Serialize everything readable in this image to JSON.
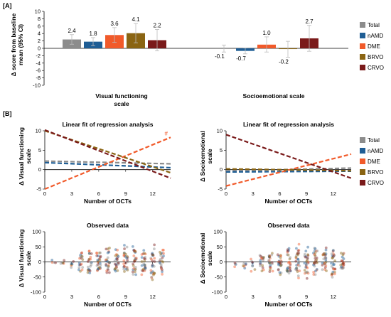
{
  "panel_a_label": "[A]",
  "panel_b_label": "[B]",
  "legend": [
    {
      "name": "Total",
      "color": "#8c8c8c"
    },
    {
      "name": "nAMD",
      "color": "#1f5e95"
    },
    {
      "name": "DME",
      "color": "#f15a2a"
    },
    {
      "name": "BRVO",
      "color": "#8a6412"
    },
    {
      "name": "CRVO",
      "color": "#7a1a1a"
    }
  ],
  "chart_data": [
    {
      "type": "bar",
      "panel": "A",
      "ylabel": "Δ score from baseline mean (95% CI)",
      "ylim": [
        -10,
        10
      ],
      "yticks": [
        -10,
        -8,
        -6,
        -4,
        -2,
        0,
        2,
        4,
        6,
        8,
        10
      ],
      "categories": [
        "Visual functioning scale",
        "Socioemotional scale"
      ],
      "series": [
        {
          "name": "Total",
          "values": [
            2.4,
            -0.1
          ],
          "ci_upper": [
            3.7,
            0.9
          ],
          "ci_lower": [
            1.1,
            -1.0
          ]
        },
        {
          "name": "nAMD",
          "values": [
            1.8,
            -0.7
          ],
          "ci_upper": [
            2.9,
            0.1
          ],
          "ci_lower": [
            0.7,
            -1.5
          ]
        },
        {
          "name": "DME",
          "values": [
            3.6,
            1.0
          ],
          "ci_upper": [
            5.6,
            3.1
          ],
          "ci_lower": [
            1.6,
            -1.0
          ]
        },
        {
          "name": "BRVO",
          "values": [
            4.1,
            -0.2
          ],
          "ci_upper": [
            6.7,
            1.9
          ],
          "ci_lower": [
            1.5,
            -2.4
          ]
        },
        {
          "name": "CRVO",
          "values": [
            2.2,
            2.7
          ],
          "ci_upper": [
            5.1,
            6.2
          ],
          "ci_lower": [
            -0.7,
            -0.8
          ]
        }
      ],
      "data_labels": [
        "2.4",
        "1.8",
        "3.6",
        "4.1",
        "2.2",
        "-0.1",
        "-0.7",
        "1.0",
        "-0.2",
        "2.7"
      ]
    },
    {
      "type": "line",
      "panel": "B",
      "title": "Linear fit of regression analysis",
      "xlabel": "Number of OCTs",
      "ylabel": "Δ Visual functioning scale",
      "xlim": [
        0,
        14
      ],
      "ylim": [
        -5,
        10
      ],
      "xticks": [
        0,
        3,
        6,
        9,
        12
      ],
      "yticks": [
        -5,
        0,
        5,
        10
      ],
      "annotation": "#",
      "series": [
        {
          "name": "Total",
          "x": [
            0,
            14
          ],
          "y": [
            2.2,
            1.5
          ]
        },
        {
          "name": "nAMD",
          "x": [
            0,
            14
          ],
          "y": [
            1.8,
            0.5
          ]
        },
        {
          "name": "DME",
          "x": [
            0,
            14
          ],
          "y": [
            -5.0,
            8.3
          ]
        },
        {
          "name": "BRVO",
          "x": [
            0,
            14
          ],
          "y": [
            10.0,
            -0.8
          ]
        },
        {
          "name": "CRVO",
          "x": [
            0,
            14
          ],
          "y": [
            10.2,
            -2.2
          ]
        }
      ]
    },
    {
      "type": "line",
      "panel": "B",
      "title": "Linear fit of regression analysis",
      "xlabel": "Number of OCTs",
      "ylabel": "Δ Socioemotional scale",
      "xlim": [
        0,
        14
      ],
      "ylim": [
        -5,
        10
      ],
      "xticks": [
        0,
        3,
        6,
        9,
        12
      ],
      "yticks": [
        -5,
        0,
        5,
        10
      ],
      "series": [
        {
          "name": "Total",
          "x": [
            0,
            14
          ],
          "y": [
            -0.3,
            0.4
          ]
        },
        {
          "name": "nAMD",
          "x": [
            0,
            14
          ],
          "y": [
            -0.6,
            -0.4
          ]
        },
        {
          "name": "DME",
          "x": [
            0,
            14
          ],
          "y": [
            -4.2,
            4.0
          ]
        },
        {
          "name": "BRVO",
          "x": [
            0,
            14
          ],
          "y": [
            0.2,
            -0.3
          ]
        },
        {
          "name": "CRVO",
          "x": [
            0,
            14
          ],
          "y": [
            9.0,
            -2.2
          ]
        }
      ]
    },
    {
      "type": "scatter",
      "panel": "B",
      "title": "Observed data",
      "xlabel": "Number of OCTs",
      "ylabel": "Δ Visual functioning scale",
      "xlim": [
        0,
        14
      ],
      "ylim": [
        -100,
        100
      ],
      "xticks": [
        0,
        3,
        6,
        9,
        12
      ],
      "yticks": [
        -100,
        -50,
        0,
        50,
        100
      ],
      "columns": [
        {
          "x": 1,
          "lo": -8,
          "hi": 8,
          "n": 4
        },
        {
          "x": 2,
          "lo": -15,
          "hi": 12,
          "n": 5
        },
        {
          "x": 3,
          "lo": -20,
          "hi": 15,
          "n": 6
        },
        {
          "x": 4,
          "lo": -35,
          "hi": 40,
          "n": 18
        },
        {
          "x": 5,
          "lo": -40,
          "hi": 45,
          "n": 22
        },
        {
          "x": 6,
          "lo": -45,
          "hi": 50,
          "n": 26
        },
        {
          "x": 7,
          "lo": -50,
          "hi": 55,
          "n": 26
        },
        {
          "x": 8,
          "lo": -45,
          "hi": 55,
          "n": 26
        },
        {
          "x": 9,
          "lo": -55,
          "hi": 60,
          "n": 28
        },
        {
          "x": 10,
          "lo": -55,
          "hi": 60,
          "n": 28
        },
        {
          "x": 11,
          "lo": -50,
          "hi": 55,
          "n": 26
        },
        {
          "x": 12,
          "lo": -75,
          "hi": 65,
          "n": 28
        },
        {
          "x": 13,
          "lo": -45,
          "hi": 55,
          "n": 22
        }
      ]
    },
    {
      "type": "scatter",
      "panel": "B",
      "title": "Observed data",
      "xlabel": "Number of OCTs",
      "ylabel": "Δ Socioemotional scale",
      "xlim": [
        0,
        14
      ],
      "ylim": [
        -100,
        100
      ],
      "xticks": [
        0,
        3,
        6,
        9,
        12
      ],
      "yticks": [
        -100,
        -50,
        0,
        50,
        100
      ],
      "columns": [
        {
          "x": 1,
          "lo": -20,
          "hi": 10,
          "n": 4
        },
        {
          "x": 2,
          "lo": -30,
          "hi": 15,
          "n": 6
        },
        {
          "x": 3,
          "lo": -35,
          "hi": 20,
          "n": 8
        },
        {
          "x": 4,
          "lo": -40,
          "hi": 30,
          "n": 18
        },
        {
          "x": 5,
          "lo": -45,
          "hi": 35,
          "n": 22
        },
        {
          "x": 6,
          "lo": -50,
          "hi": 45,
          "n": 26
        },
        {
          "x": 7,
          "lo": -50,
          "hi": 55,
          "n": 26
        },
        {
          "x": 8,
          "lo": -55,
          "hi": 60,
          "n": 28
        },
        {
          "x": 9,
          "lo": -60,
          "hi": 65,
          "n": 28
        },
        {
          "x": 10,
          "lo": -55,
          "hi": 60,
          "n": 28
        },
        {
          "x": 11,
          "lo": -50,
          "hi": 55,
          "n": 26
        },
        {
          "x": 12,
          "lo": -60,
          "hi": 60,
          "n": 28
        },
        {
          "x": 13,
          "lo": -45,
          "hi": 50,
          "n": 22
        }
      ]
    }
  ]
}
